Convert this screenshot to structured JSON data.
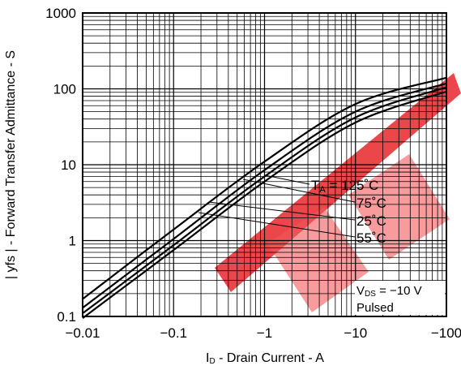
{
  "chart_data": {
    "type": "line",
    "title": "",
    "x_scale": "log",
    "y_scale": "log",
    "xlim": [
      -0.01,
      -100
    ],
    "ylim": [
      0.1,
      1000
    ],
    "grid": true,
    "xlabel": {
      "main": "I",
      "sub": "D",
      "rest": " - Drain Current - A"
    },
    "ylabel": "| yfs | - Forward Transfer Admittance - S",
    "x_ticks": [
      "−0.01",
      "−0.1",
      "−1",
      "−10",
      "−100"
    ],
    "y_ticks": [
      "0.1",
      "1",
      "10",
      "100",
      "1000"
    ],
    "series": [
      {
        "name": "TA = 125°C",
        "x": [
          -0.01,
          -0.1,
          -1,
          -10,
          -100
        ],
        "y": [
          0.095,
          0.75,
          6.0,
          36,
          92
        ]
      },
      {
        "name": "75°C",
        "x": [
          -0.01,
          -0.1,
          -1,
          -10,
          -100
        ],
        "y": [
          0.11,
          0.87,
          7.0,
          42,
          105
        ]
      },
      {
        "name": "25°C",
        "x": [
          -0.01,
          -0.1,
          -1,
          -10,
          -100
        ],
        "y": [
          0.13,
          1.05,
          8.5,
          50,
          118
        ]
      },
      {
        "name": "55°C",
        "x": [
          -0.01,
          -0.1,
          -1,
          -10,
          -100
        ],
        "y": [
          0.17,
          1.4,
          11,
          63,
          140
        ]
      }
    ],
    "annotations": {
      "ta_prefix": "T",
      "ta_sub": "A",
      "ta_suffix": " = 125˚C",
      "label_75": "75˚C",
      "label_25": "25˚C",
      "label_55": "55˚C",
      "vds_prefix": "V",
      "vds_sub": "DS",
      "vds_suffix": " = −10 V",
      "pulsed": "Pulsed"
    },
    "watermark_color": "#e8262b"
  }
}
